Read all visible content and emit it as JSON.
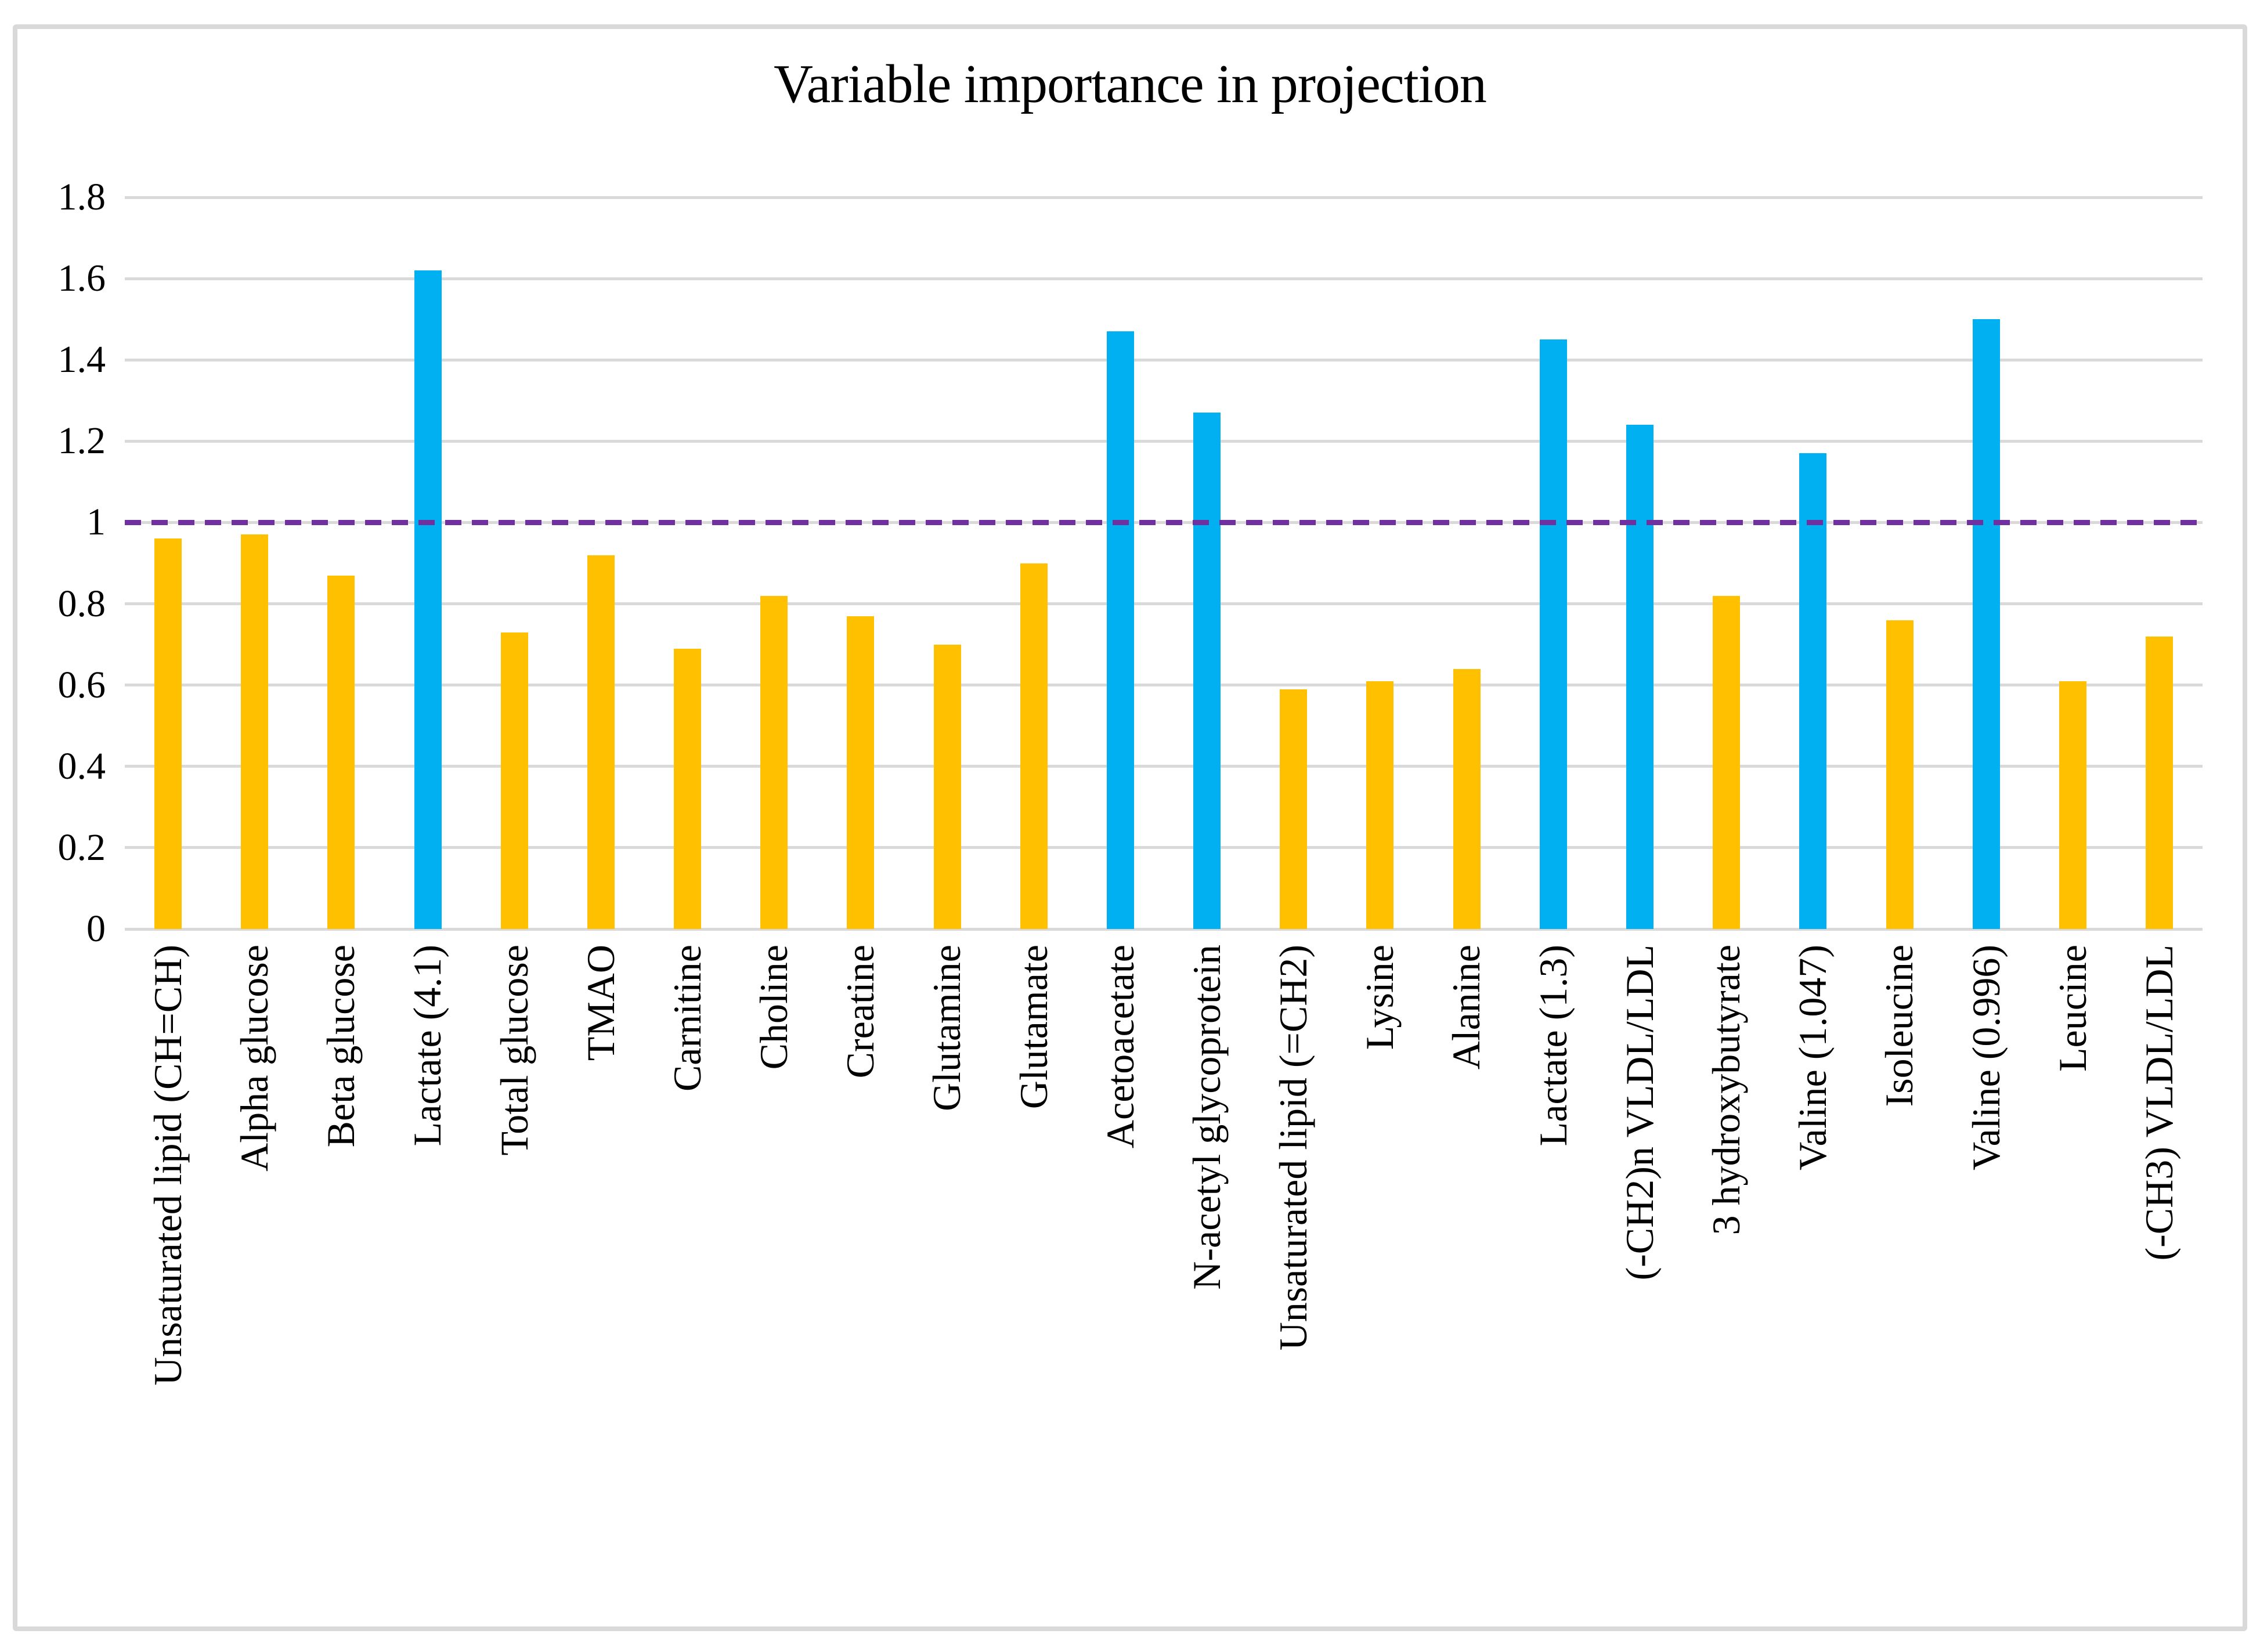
{
  "title": "Variable importance in projection",
  "chart_data": {
    "type": "bar",
    "title": "Variable importance in projection",
    "xlabel": "",
    "ylabel": "",
    "ylim": [
      0,
      1.8
    ],
    "yticks": [
      "0",
      "0.2",
      "0.4",
      "0.6",
      "0.8",
      "1",
      "1.2",
      "1.4",
      "1.6",
      "1.8"
    ],
    "grid": true,
    "legend": false,
    "x_label_rotation_degrees": 90,
    "threshold_line": {
      "value": 1,
      "style": "dashed",
      "color": "#7030A0"
    },
    "colors": {
      "below_threshold": "#FFC000",
      "above_threshold": "#00B0F0",
      "gridline": "#D9D9D9"
    },
    "categories": [
      "Unsaturated lipid (CH=CH)",
      "Alpha glucose",
      "Beta glucose",
      "Lactate (4.1)",
      "Total glucose",
      "TMAO",
      "Carnitine",
      "Choline",
      "Creatine",
      "Glutamine",
      "Glutamate",
      "Acetoacetate",
      "N-acetyl glycoprotein",
      "Unsaturated lipid (=CH2)",
      "Lysine",
      "Alanine",
      "Lactate (1.3)",
      "(-CH2)n VLDL/LDL",
      "3 hydroxybutyrate",
      "Valine (1.047)",
      "Isoleucine",
      "Valine (0.996)",
      "Leucine",
      "(-CH3) VLDL/LDL"
    ],
    "values": [
      0.96,
      0.97,
      0.87,
      1.62,
      0.73,
      0.92,
      0.69,
      0.82,
      0.77,
      0.7,
      0.9,
      1.47,
      1.27,
      0.59,
      0.61,
      0.64,
      1.45,
      1.24,
      0.82,
      1.17,
      0.76,
      1.5,
      0.61,
      0.72
    ],
    "bar_colors": [
      "#FFC000",
      "#FFC000",
      "#FFC000",
      "#00B0F0",
      "#FFC000",
      "#FFC000",
      "#FFC000",
      "#FFC000",
      "#FFC000",
      "#FFC000",
      "#FFC000",
      "#00B0F0",
      "#00B0F0",
      "#FFC000",
      "#FFC000",
      "#FFC000",
      "#00B0F0",
      "#00B0F0",
      "#FFC000",
      "#00B0F0",
      "#FFC000",
      "#00B0F0",
      "#FFC000",
      "#FFC000"
    ]
  }
}
